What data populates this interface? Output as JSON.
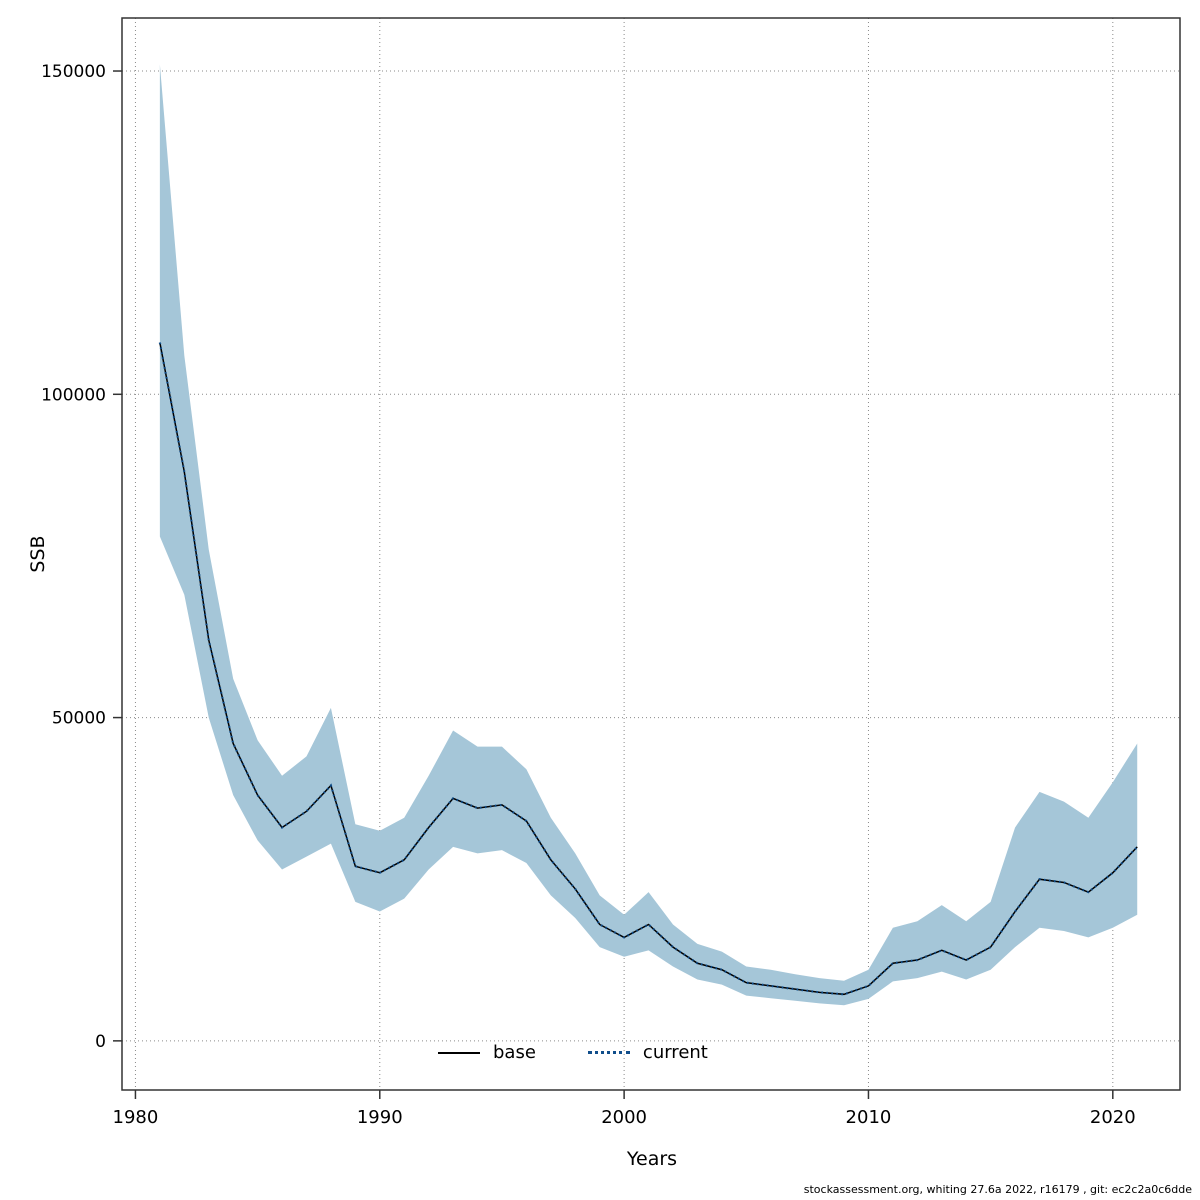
{
  "figure": {
    "xlabel": "Years",
    "ylabel": "SSB",
    "footer": "stockassessment.org, whiting 27.6a 2022, r16179 , git: ec2c2a0c6dde",
    "legend": [
      {
        "label": "base",
        "style": "solid",
        "color": "#000000"
      },
      {
        "label": "current",
        "style": "dotted",
        "color": "#104E8B"
      }
    ]
  },
  "chart_data": {
    "type": "line",
    "title": "",
    "xlabel": "Years",
    "ylabel": "SSB",
    "grid": "dotted",
    "legend_position": "bottom-center-inside",
    "xlim": [
      1979.45,
      2022.75
    ],
    "ylim": [
      -7600,
      158200
    ],
    "xticks": [
      1980,
      1990,
      2000,
      2010,
      2020
    ],
    "yticks": [
      0,
      50000,
      100000,
      150000
    ],
    "x": [
      1981,
      1982,
      1983,
      1984,
      1985,
      1986,
      1987,
      1988,
      1989,
      1990,
      1991,
      1992,
      1993,
      1994,
      1995,
      1996,
      1997,
      1998,
      1999,
      2000,
      2001,
      2002,
      2003,
      2004,
      2005,
      2006,
      2007,
      2008,
      2009,
      2010,
      2011,
      2012,
      2013,
      2014,
      2015,
      2016,
      2017,
      2018,
      2019,
      2020,
      2021
    ],
    "series": [
      {
        "name": "base",
        "color": "#000000",
        "style": "solid",
        "width": 1.5,
        "values": [
          108000,
          88000,
          62000,
          46000,
          38000,
          33000,
          35500,
          39500,
          27000,
          26000,
          28000,
          33000,
          37500,
          36000,
          36500,
          34000,
          28000,
          23500,
          18000,
          16000,
          18000,
          14500,
          12000,
          11000,
          9000,
          8500,
          8000,
          7500,
          7200,
          8500,
          12000,
          12500,
          14000,
          12500,
          14500,
          20000,
          25000,
          24500,
          23000,
          26000,
          30000
        ]
      },
      {
        "name": "current",
        "color": "#104E8B",
        "style": "dotted",
        "width": 2.2,
        "values": [
          108000,
          88000,
          62000,
          46000,
          38000,
          33000,
          35500,
          39500,
          27000,
          26000,
          28000,
          33000,
          37500,
          36000,
          36500,
          34000,
          28000,
          23500,
          18000,
          16000,
          18000,
          14500,
          12000,
          11000,
          9000,
          8500,
          8000,
          7500,
          7200,
          8500,
          12000,
          12500,
          14000,
          12500,
          14500,
          20000,
          25000,
          24500,
          23000,
          26000,
          30000
        ]
      }
    ],
    "band": {
      "name": "confidence-interval",
      "color": "#a5c6d8",
      "lower": [
        78000,
        69000,
        50000,
        38000,
        31000,
        26500,
        28500,
        30500,
        21500,
        20000,
        22000,
        26500,
        30000,
        29000,
        29500,
        27500,
        22500,
        19000,
        14500,
        13000,
        14000,
        11500,
        9500,
        8700,
        7000,
        6600,
        6200,
        5800,
        5500,
        6500,
        9200,
        9700,
        10700,
        9500,
        11000,
        14500,
        17500,
        17000,
        16000,
        17500,
        19500
      ],
      "upper": [
        151000,
        106000,
        76000,
        56000,
        46500,
        41000,
        44000,
        51500,
        33500,
        32500,
        34500,
        41000,
        48000,
        45500,
        45500,
        42000,
        34500,
        29000,
        22500,
        19500,
        23000,
        18000,
        15000,
        13800,
        11500,
        11000,
        10300,
        9700,
        9300,
        11000,
        17500,
        18500,
        21000,
        18500,
        21500,
        33000,
        38500,
        37000,
        34500,
        40000,
        46000
      ]
    }
  }
}
